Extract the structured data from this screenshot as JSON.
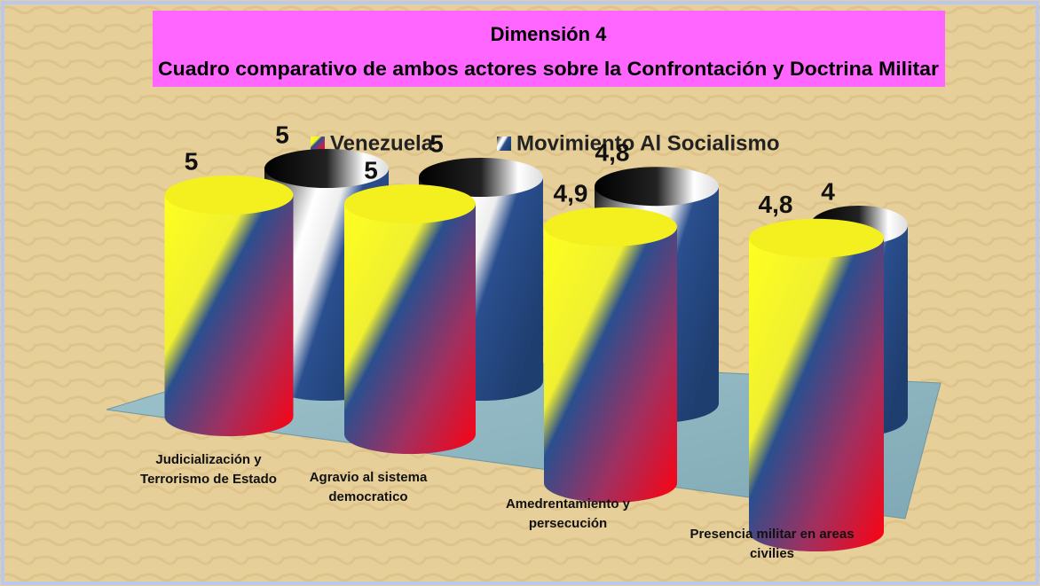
{
  "chart_data": {
    "type": "bar",
    "title": "Dimensión 4",
    "subtitle": "Cuadro comparativo de ambos actores sobre la Confrontación y Doctrina Militar",
    "categories": [
      "Judicialización y Terrorismo de Estado",
      "Agravio al sistema democratico",
      "Amedrentamiento y persecución",
      "Presencia militar en areas civilies"
    ],
    "series": [
      {
        "name": "Venezuela",
        "color": "#2a4f8f",
        "values": [
          5,
          5,
          4.9,
          4.8
        ],
        "value_labels": [
          "5",
          "5",
          "4,9",
          "4,8"
        ]
      },
      {
        "name": "Movimiento Al Socialismo",
        "color": "#ffffff",
        "values": [
          5,
          5,
          4.8,
          4
        ],
        "value_labels": [
          "5",
          "5",
          "4,8",
          "4"
        ]
      }
    ]
  }
}
